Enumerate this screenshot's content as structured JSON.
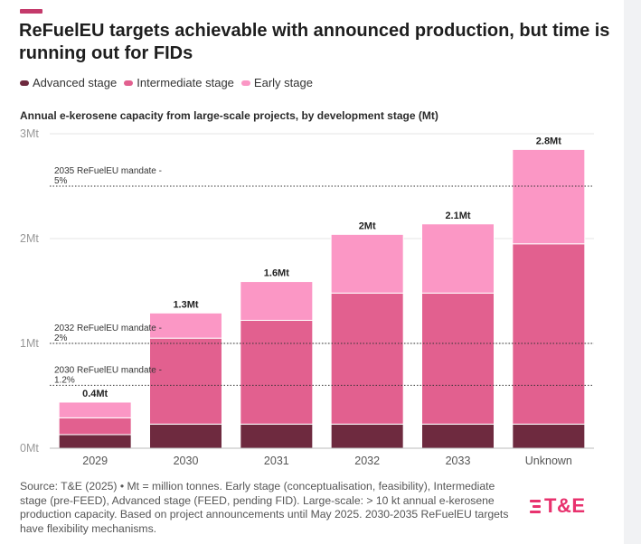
{
  "header": {
    "title": "ReFuelEU targets achievable with announced production, but time is running out for FIDs",
    "accent_color": "#c43a6b"
  },
  "legend": [
    {
      "label": "Advanced stage",
      "color": "#6e2a3f"
    },
    {
      "label": "Intermediate stage",
      "color": "#e2608f"
    },
    {
      "label": "Early stage",
      "color": "#fb97c5"
    }
  ],
  "footer": {
    "source": "Source: T&E (2025) • Mt = million tonnes. Early stage (conceptualisation, feasibility), Intermediate stage (pre-FEED), Advanced stage (FEED, pending FID). Large-scale: > 10 kt annual e-kerosene production capacity. Based on project announcements until May 2025. 2030-2035 ReFuelEU targets have flexibility mechanisms.",
    "logo_text": "T&E",
    "logo_color": "#e8326e"
  },
  "chart_data": {
    "type": "bar",
    "stacked": true,
    "title": "Annual e-kerosene capacity from large-scale projects, by development stage (Mt)",
    "xlabel": "",
    "ylabel": "",
    "ylim": [
      0,
      3
    ],
    "yticks": [
      {
        "value": 0,
        "label": "0Mt"
      },
      {
        "value": 1,
        "label": "1Mt"
      },
      {
        "value": 2,
        "label": "2Mt"
      },
      {
        "value": 3,
        "label": "3Mt"
      }
    ],
    "categories": [
      "2029",
      "2030",
      "2031",
      "2032",
      "2033",
      "Unknown"
    ],
    "series": [
      {
        "name": "Advanced stage",
        "color": "#6e2a3f",
        "values": [
          0.13,
          0.23,
          0.23,
          0.23,
          0.23,
          0.23
        ]
      },
      {
        "name": "Intermediate stage",
        "color": "#e2608f",
        "values": [
          0.16,
          0.82,
          0.99,
          1.25,
          1.25,
          1.72
        ]
      },
      {
        "name": "Early stage",
        "color": "#fb97c5",
        "values": [
          0.15,
          0.24,
          0.37,
          0.56,
          0.66,
          0.9
        ]
      }
    ],
    "total_labels": [
      "0.4Mt",
      "1.3Mt",
      "1.6Mt",
      "2Mt",
      "2.1Mt",
      "2.8Mt"
    ],
    "reference_lines": [
      {
        "value": 2.5,
        "label_lines": [
          "2035 ReFuelEU mandate -",
          "5%"
        ]
      },
      {
        "value": 1.0,
        "label_lines": [
          "2032 ReFuelEU mandate -",
          "2%"
        ]
      },
      {
        "value": 0.6,
        "label_lines": [
          "2030 ReFuelEU mandate -",
          "1.2%"
        ]
      }
    ],
    "grid": true,
    "legend_position": "top-left"
  }
}
